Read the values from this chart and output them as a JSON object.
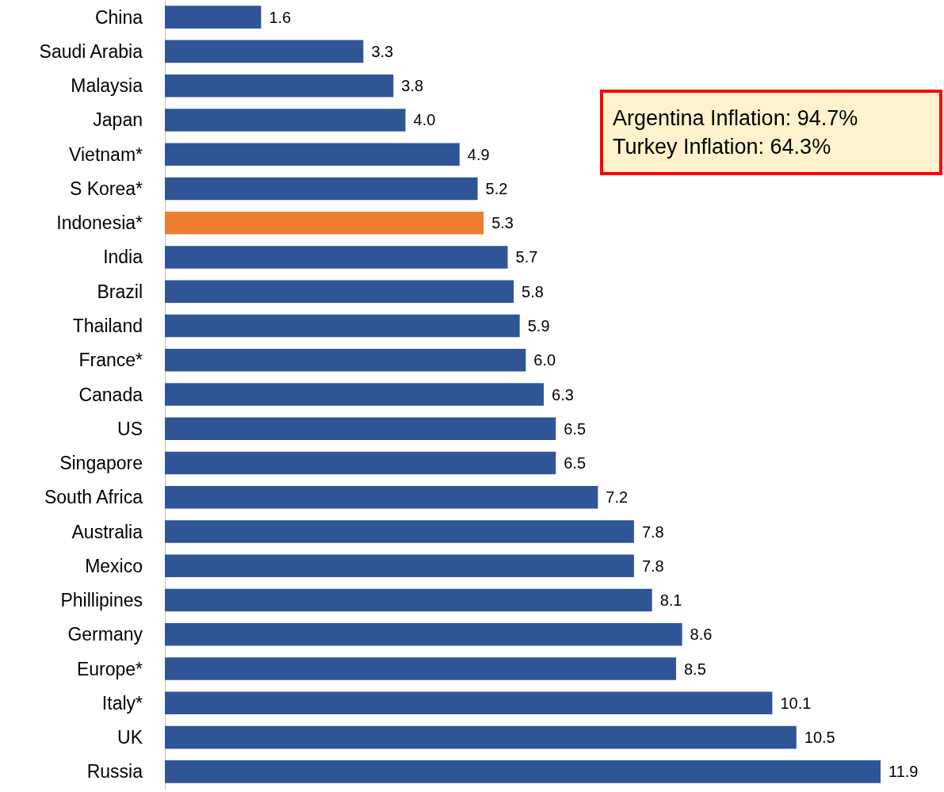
{
  "chart_data": {
    "type": "bar",
    "orientation": "horizontal",
    "categories": [
      "China",
      "Saudi Arabia",
      "Malaysia",
      "Japan",
      "Vietnam*",
      "S Korea*",
      "Indonesia*",
      "India",
      "Brazil",
      "Thailand",
      "France*",
      "Canada",
      "US",
      "Singapore",
      "South Africa",
      "Australia",
      "Mexico",
      "Phillipines",
      "Germany",
      "Europe*",
      "Italy*",
      "UK",
      "Russia"
    ],
    "values": [
      1.6,
      3.3,
      3.8,
      4.0,
      4.9,
      5.2,
      5.3,
      5.7,
      5.8,
      5.9,
      6.0,
      6.3,
      6.5,
      6.5,
      7.2,
      7.8,
      7.8,
      8.1,
      8.6,
      8.5,
      10.1,
      10.5,
      11.9
    ],
    "colors": [
      "#2f5597",
      "#2f5597",
      "#2f5597",
      "#2f5597",
      "#2f5597",
      "#2f5597",
      "#ed7d31",
      "#2f5597",
      "#2f5597",
      "#2f5597",
      "#2f5597",
      "#2f5597",
      "#2f5597",
      "#2f5597",
      "#2f5597",
      "#2f5597",
      "#2f5597",
      "#2f5597",
      "#2f5597",
      "#2f5597",
      "#2f5597",
      "#2f5597",
      "#2f5597"
    ],
    "value_labels": [
      "1.6",
      "3.3",
      "3.8",
      "4.0",
      "4.9",
      "5.2",
      "5.3",
      "5.7",
      "5.8",
      "5.9",
      "6.0",
      "6.3",
      "6.5",
      "6.5",
      "7.2",
      "7.8",
      "7.8",
      "8.1",
      "8.6",
      "8.5",
      "10.1",
      "10.5",
      "11.9"
    ],
    "tick_labels": "y",
    "grid": false,
    "annotations": [
      "Argentina Inflation: 94.7%",
      "Turkey Inflation: 64.3%"
    ]
  }
}
